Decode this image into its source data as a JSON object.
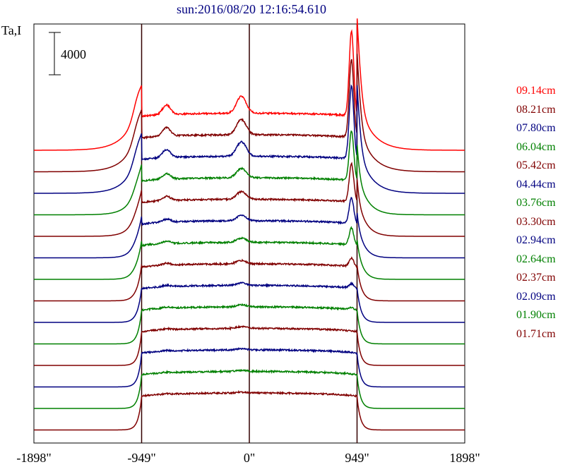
{
  "chart_data": {
    "type": "line",
    "title": "sun:2016/08/20 12:16:54.610",
    "ylabel": "Ta,I",
    "scale_bar_label": "4000",
    "scale_bar_value": 4000,
    "x_ticks": [
      {
        "value": -1898,
        "label": "-1898\""
      },
      {
        "value": -949,
        "label": "-949\""
      },
      {
        "value": 0,
        "label": "0\""
      },
      {
        "value": 949,
        "label": "949\""
      },
      {
        "value": 1898,
        "label": "1898\""
      }
    ],
    "xlim": [
      -1898,
      1898
    ],
    "vertical_markers": [
      -949,
      0,
      949
    ],
    "profile_style": "stacked limb-brightened solar scans, offset vertically",
    "series": [
      {
        "name": "09.14cm",
        "color": "#ff0000",
        "limb_peak_ratio": 1.0,
        "center_bump": 1.0
      },
      {
        "name": "08.21cm",
        "color": "#800000",
        "limb_peak_ratio": 0.92,
        "center_bump": 0.9
      },
      {
        "name": "07.80cm",
        "color": "#000080",
        "limb_peak_ratio": 0.86,
        "center_bump": 0.85
      },
      {
        "name": "06.04cm",
        "color": "#008000",
        "limb_peak_ratio": 0.58,
        "center_bump": 0.55
      },
      {
        "name": "05.42cm",
        "color": "#800000",
        "limb_peak_ratio": 0.45,
        "center_bump": 0.45
      },
      {
        "name": "04.44cm",
        "color": "#000080",
        "limb_peak_ratio": 0.3,
        "center_bump": 0.32
      },
      {
        "name": "03.76cm",
        "color": "#008000",
        "limb_peak_ratio": 0.2,
        "center_bump": 0.25
      },
      {
        "name": "03.30cm",
        "color": "#800000",
        "limb_peak_ratio": 0.1,
        "center_bump": 0.2
      },
      {
        "name": "02.94cm",
        "color": "#000080",
        "limb_peak_ratio": 0.05,
        "center_bump": 0.15
      },
      {
        "name": "02.64cm",
        "color": "#008000",
        "limb_peak_ratio": 0.02,
        "center_bump": 0.12
      },
      {
        "name": "02.37cm",
        "color": "#800000",
        "limb_peak_ratio": 0.0,
        "center_bump": 0.1
      },
      {
        "name": "02.09cm",
        "color": "#000080",
        "limb_peak_ratio": 0.0,
        "center_bump": 0.08
      },
      {
        "name": "01.90cm",
        "color": "#008000",
        "limb_peak_ratio": 0.0,
        "center_bump": 0.06
      },
      {
        "name": "01.71cm",
        "color": "#800000",
        "limb_peak_ratio": 0.0,
        "center_bump": 0.05
      }
    ],
    "grid": false,
    "legend_position": "right"
  }
}
